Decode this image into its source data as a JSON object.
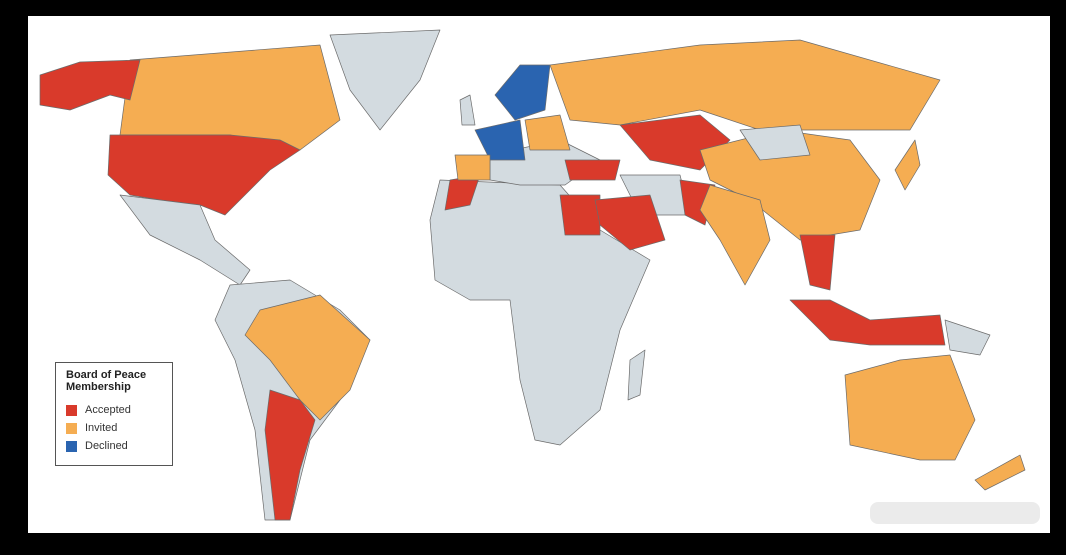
{
  "legend": {
    "title": "Board of Peace Membership",
    "items": [
      {
        "label": "Accepted",
        "color": "#d93a2b"
      },
      {
        "label": "Invited",
        "color": "#f5ad52"
      },
      {
        "label": "Declined",
        "color": "#2a64b0"
      }
    ],
    "no_data_color": "#d3dbe0"
  }
}
